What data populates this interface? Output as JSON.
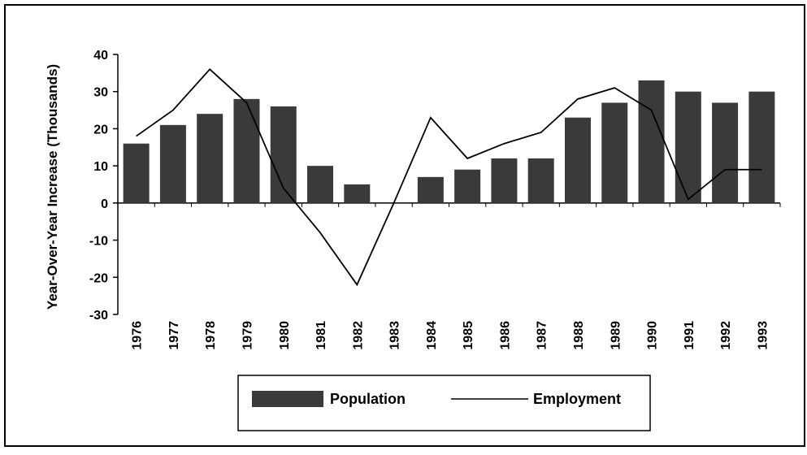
{
  "chart_data": {
    "type": "bar_line",
    "y_label": "Year-Over-Year Increase (Thousands)",
    "categories": [
      "1976",
      "1977",
      "1978",
      "1979",
      "1980",
      "1981",
      "1982",
      "1983",
      "1984",
      "1985",
      "1986",
      "1987",
      "1988",
      "1989",
      "1990",
      "1991",
      "1992",
      "1993"
    ],
    "series": [
      {
        "name": "Population",
        "type": "bar",
        "color": "#3a3a3a",
        "values": [
          16,
          21,
          24,
          28,
          26,
          10,
          5,
          0,
          7,
          9,
          12,
          12,
          23,
          27,
          33,
          30,
          27,
          30
        ]
      },
      {
        "name": "Employment",
        "type": "line",
        "color": "#000000",
        "values": [
          18,
          25,
          36,
          27,
          4,
          -8,
          -22,
          0,
          23,
          12,
          16,
          19,
          28,
          31,
          25,
          1,
          9,
          9
        ]
      }
    ],
    "ylim": [
      -30,
      40
    ],
    "yticks": [
      -30,
      -20,
      -10,
      0,
      10,
      20,
      30,
      40
    ],
    "grid": false
  }
}
